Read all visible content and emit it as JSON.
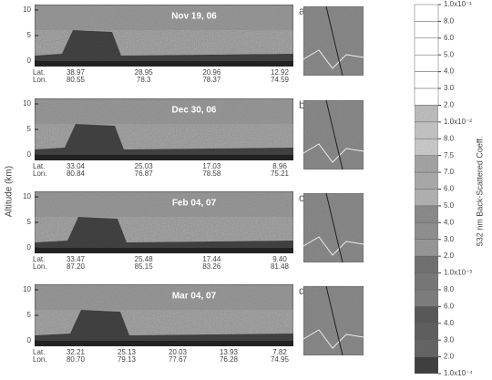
{
  "y_axis_label": "Altitude (km)",
  "altitude_ticks": [
    "0",
    "5",
    "10"
  ],
  "row_labels": [
    "Lat.",
    "Lon."
  ],
  "panels": [
    {
      "letter": "a",
      "date": "Nov 19, 06",
      "lat": [
        "38.97",
        "28.95",
        "20.96",
        "12.92"
      ],
      "lon": [
        "80.55",
        "78.3",
        "78.37",
        "74.59"
      ]
    },
    {
      "letter": "b",
      "date": "Dec 30, 06",
      "lat": [
        "33.04",
        "25.03",
        "17.03",
        "8.96"
      ],
      "lon": [
        "80.84",
        "76.87",
        "78.58",
        "75.21"
      ]
    },
    {
      "letter": "c",
      "date": "Feb 04, 07",
      "lat": [
        "33.47",
        "25.48",
        "17.44",
        "9.40"
      ],
      "lon": [
        "87.20",
        "85.15",
        "83.26",
        "81.48"
      ]
    },
    {
      "letter": "d",
      "date": "Mar 04, 07",
      "lat": [
        "32.21",
        "25.13",
        "20.03",
        "13.93",
        "7.82"
      ],
      "lon": [
        "80.70",
        "79.13",
        "77.67",
        "76.28",
        "74.95"
      ]
    }
  ],
  "colorbar": {
    "label": "532 nm Back-Scattered Coeff.",
    "ticks": [
      "1.0x10⁻¹",
      "8.0",
      "6.0",
      "5.0",
      "4.0",
      "3.0",
      "2.0",
      "1.0x10⁻²",
      "8.0",
      "7.5",
      "7.0",
      "6.0",
      "5.0",
      "4.0",
      "3.0",
      "2.0",
      "1.0x10⁻³",
      "8.0",
      "6.0",
      "4.0",
      "3.0",
      "2.0",
      "1.0x10⁻⁴"
    ]
  }
}
